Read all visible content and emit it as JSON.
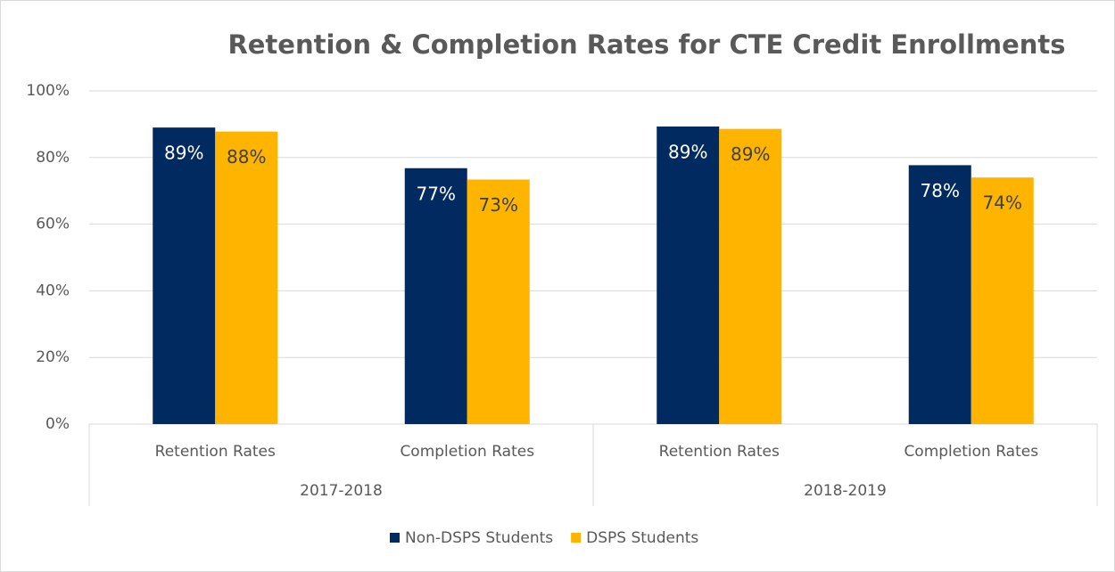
{
  "chart_data": {
    "type": "bar",
    "title": "Retention & Completion Rates for CTE Credit Enrollments",
    "categories": [
      "Retention Rates",
      "Completion Rates",
      "Retention Rates",
      "Completion Rates"
    ],
    "category_groups": [
      "2017-2018",
      "2018-2019"
    ],
    "series": [
      {
        "name": "Non-DSPS Students",
        "color": "#002a60",
        "label_color": "#ffffff",
        "values": [
          89.0,
          76.8,
          89.3,
          77.7
        ],
        "value_labels": [
          "89%",
          "77%",
          "89%",
          "78%"
        ]
      },
      {
        "name": "DSPS Students",
        "color": "#ffb500",
        "label_color": "#404040",
        "values": [
          87.8,
          73.4,
          88.6,
          74.0
        ],
        "value_labels": [
          "88%",
          "73%",
          "89%",
          "74%"
        ]
      }
    ],
    "ylim": [
      0,
      100
    ],
    "yticks": [
      {
        "value": 0,
        "label": "0%"
      },
      {
        "value": 20,
        "label": "20%"
      },
      {
        "value": 40,
        "label": "40%"
      },
      {
        "value": 60,
        "label": "60%"
      },
      {
        "value": 80,
        "label": "80%"
      },
      {
        "value": 100,
        "label": "100%"
      }
    ],
    "grid": true,
    "legend": "bottom"
  }
}
